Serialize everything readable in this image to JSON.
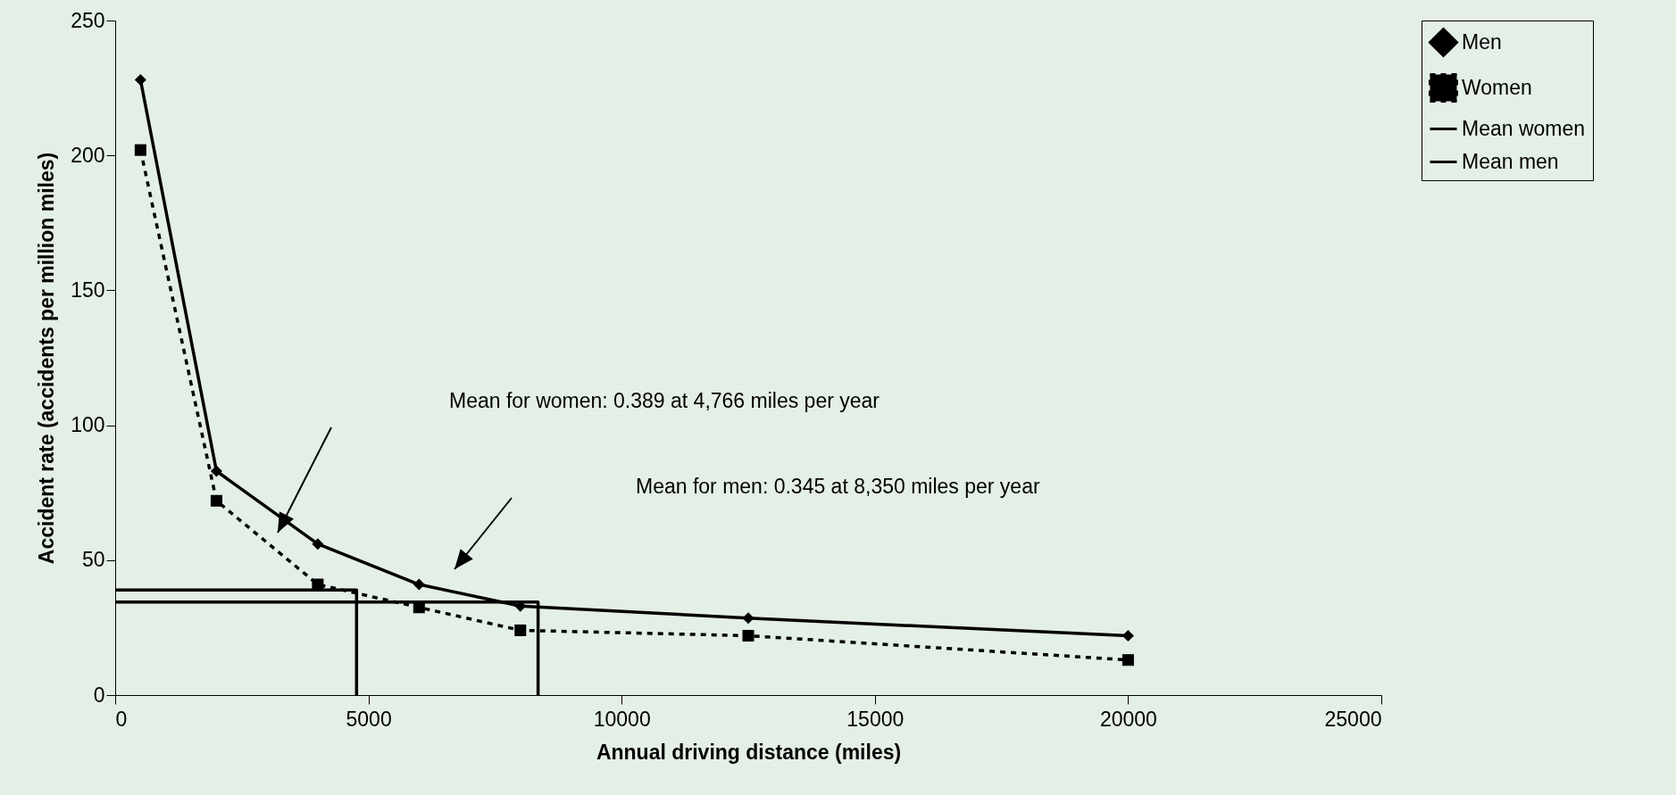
{
  "chart_data": {
    "type": "line",
    "xlabel": "Annual driving distance (miles)",
    "ylabel": "Accident rate (accidents per million miles)",
    "xlim": [
      0,
      25000
    ],
    "xticks": [
      0,
      5000,
      10000,
      15000,
      20000,
      25000
    ],
    "ylim": [
      0,
      250
    ],
    "yticks": [
      0,
      50,
      100,
      150,
      200,
      250
    ],
    "grid": false,
    "legend": "right",
    "series": [
      {
        "name": "Men",
        "color": "#000000",
        "marker": "diamond",
        "line_style": "solid",
        "x": [
          500,
          2000,
          4000,
          6000,
          8000,
          12500,
          20000
        ],
        "values": [
          228,
          83,
          56,
          41,
          33,
          28.5,
          22
        ]
      },
      {
        "name": "Women",
        "color": "#000000",
        "marker": "square",
        "line_style": "dashed",
        "x": [
          500,
          2000,
          4000,
          6000,
          8000,
          12500,
          20000
        ],
        "values": [
          202,
          72,
          41,
          32.5,
          24,
          22,
          13
        ]
      },
      {
        "name": "Mean women",
        "color": "#000000",
        "marker": "none",
        "line_style": "solid",
        "x": [
          0,
          4766,
          4766
        ],
        "values": [
          38.9,
          38.9,
          0
        ]
      },
      {
        "name": "Mean men",
        "color": "#000000",
        "marker": "none",
        "line_style": "solid",
        "x": [
          0,
          8350,
          8350
        ],
        "values": [
          34.5,
          34.5,
          0
        ]
      }
    ],
    "annotations": [
      "Mean for women: 0.389 at 4,766 miles per year",
      "Mean for men: 0.345 at 8,350 miles per year"
    ]
  }
}
